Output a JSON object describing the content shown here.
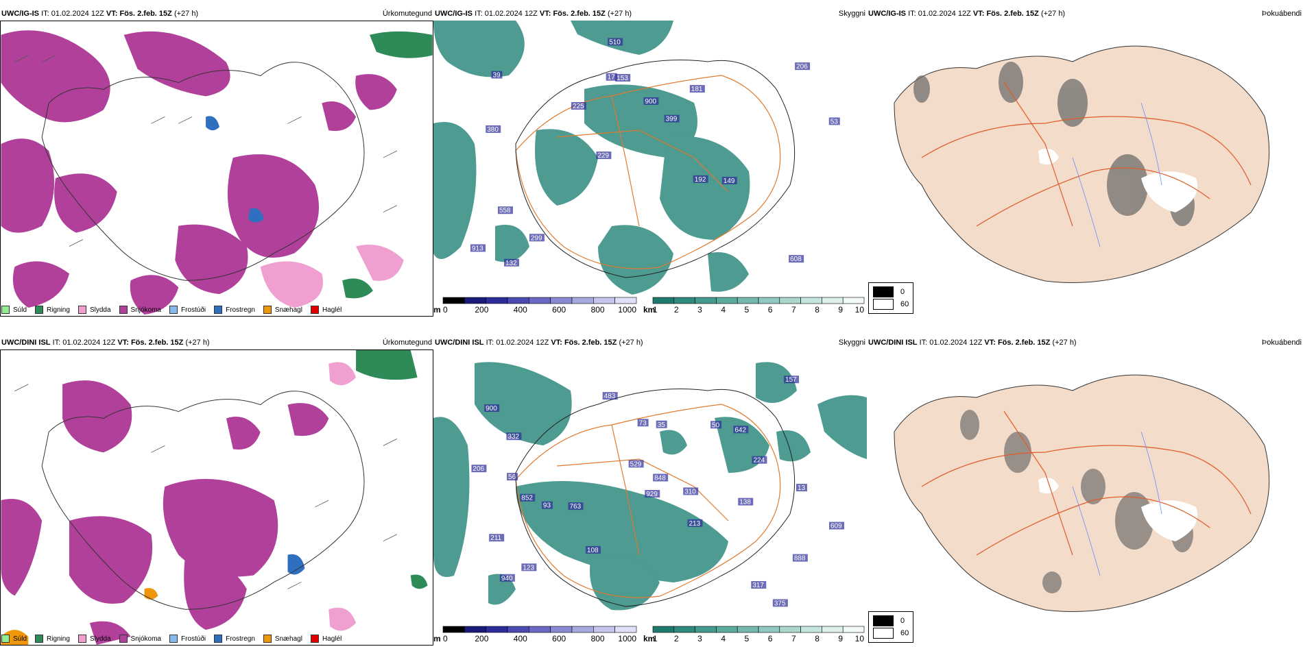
{
  "runs": [
    {
      "model": "UWC/IG-IS",
      "it_label": "IT:",
      "it": "01.02.2024 12Z",
      "vt_label": "VT:",
      "vt": "Fös. 2.feb. 15Z",
      "lead": "(+27 h)"
    },
    {
      "model": "UWC/DINI ISL",
      "it_label": "IT:",
      "it": "01.02.2024 12Z",
      "vt_label": "VT:",
      "vt": "Fös. 2.feb. 15Z",
      "lead": "(+27 h)"
    }
  ],
  "panel_titles": {
    "precip": "Úrkomutegund",
    "visibility": "Skyggni",
    "fog": "Þokuábendi"
  },
  "precip_legend": [
    {
      "label": "Súld",
      "color": "#90ee90"
    },
    {
      "label": "Rigning",
      "color": "#2e8b57"
    },
    {
      "label": "Slydda",
      "color": "#f0a0d0"
    },
    {
      "label": "Snjókoma",
      "color": "#b0409a"
    },
    {
      "label": "Frostúði",
      "color": "#87b8ee"
    },
    {
      "label": "Frostregn",
      "color": "#2f6fbf"
    },
    {
      "label": "Snæhagl",
      "color": "#f0960a"
    },
    {
      "label": "Haglél",
      "color": "#e00000"
    }
  ],
  "vis_colorbar": {
    "m_unit": "m",
    "m_ticks": [
      "0",
      "200",
      "400",
      "600",
      "800",
      "1000"
    ],
    "m_colors": [
      "#000000",
      "#1a1a7a",
      "#2d2d9a",
      "#4a4ab0",
      "#6a6ac4",
      "#8a8ad4",
      "#a8a8e0",
      "#c4c4ec",
      "#e0e0f6"
    ],
    "km_unit": "km",
    "km_ticks": [
      "1",
      "2",
      "3",
      "4",
      "5",
      "6",
      "7",
      "8",
      "9",
      "10"
    ],
    "km_colors": [
      "#1f7a6e",
      "#2f8a7e",
      "#449a8e",
      "#5ca99e",
      "#76b8ae",
      "#90c7be",
      "#aad6ce",
      "#c4e4de",
      "#ddf0ec",
      "#f2faf8"
    ]
  },
  "fog_legend": [
    {
      "label": "0",
      "color": "#000000"
    },
    {
      "label": "60",
      "color": "#ffffff"
    }
  ],
  "vis_labels": {
    "top": [
      "608",
      "380",
      "206",
      "229",
      "181",
      "132",
      "17",
      "900",
      "558",
      "225",
      "913",
      "299",
      "153",
      "399",
      "149",
      "39",
      "510",
      "53",
      "192"
    ],
    "bottom": [
      "375",
      "852",
      "213",
      "900",
      "888",
      "332",
      "123",
      "763",
      "642",
      "73",
      "50",
      "317",
      "108",
      "483",
      "310",
      "211",
      "138",
      "848",
      "206",
      "940",
      "157",
      "35",
      "224",
      "609",
      "13",
      "56",
      "93",
      "929",
      "529"
    ]
  }
}
